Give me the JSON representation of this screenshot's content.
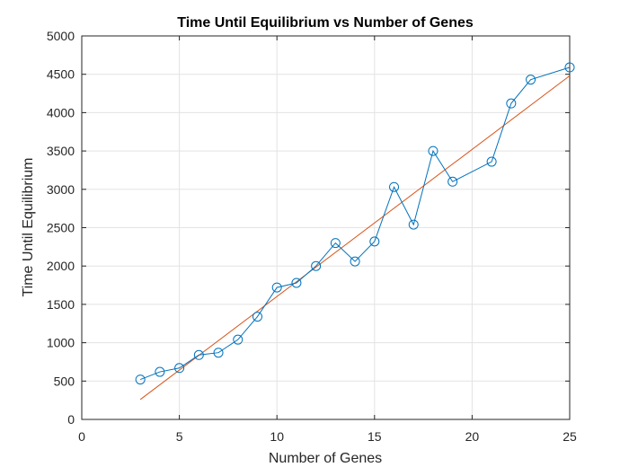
{
  "chart_data": {
    "type": "line",
    "title": "Time Until Equilibrium vs Number of Genes",
    "xlabel": "Number of Genes",
    "ylabel": "Time Until Equilibrium",
    "xlim": [
      0,
      25
    ],
    "ylim": [
      0,
      5000
    ],
    "xticks": [
      0,
      5,
      10,
      15,
      20,
      25
    ],
    "yticks": [
      0,
      500,
      1000,
      1500,
      2000,
      2500,
      3000,
      3500,
      4000,
      4500,
      5000
    ],
    "grid": true,
    "legend": "none",
    "series": [
      {
        "marker": "circle",
        "color": "#0072BD",
        "x": [
          3,
          4,
          5,
          6,
          7,
          8,
          9,
          10,
          11,
          12,
          13,
          14,
          15,
          16,
          17,
          18,
          19,
          21,
          22,
          23,
          25
        ],
        "y": [
          520,
          620,
          670,
          840,
          870,
          1040,
          1340,
          1720,
          1780,
          2000,
          2300,
          2060,
          2320,
          3030,
          2540,
          3500,
          3100,
          3360,
          4120,
          4430,
          4590
        ]
      },
      {
        "marker": "none",
        "color": "#D95319",
        "x": [
          3,
          25
        ],
        "y": [
          260,
          4480
        ]
      }
    ]
  }
}
